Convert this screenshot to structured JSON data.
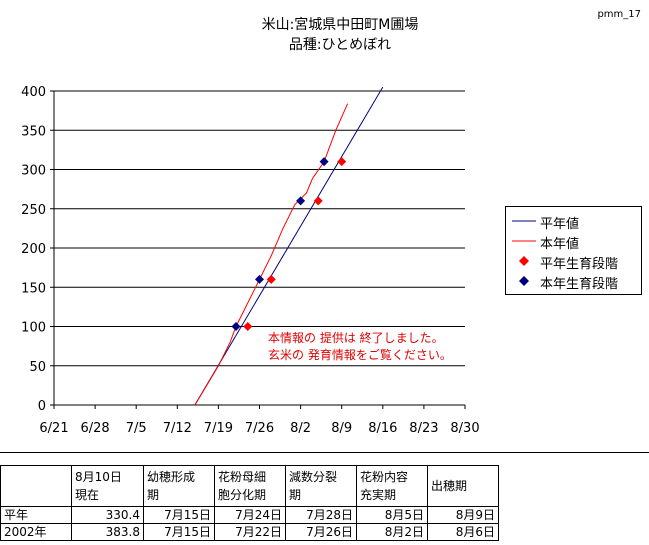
{
  "page_code": "pmm_17",
  "title_line1": "米山:宮城県中田町M圃場",
  "title_line2": "品種:ひとめぼれ",
  "notice": [
    "本情報の 提供は 終了しました。",
    "玄米の 発育情報をご覧ください。"
  ],
  "colors": {
    "average": "#000080",
    "current": "#ff0000",
    "grid": "#000000"
  },
  "chart_data": {
    "type": "line",
    "title": "米山:宮城県中田町M圃場 品種:ひとめぼれ",
    "xlabel": "",
    "ylabel": "",
    "x_ticks": [
      "6/21",
      "6/28",
      "7/5",
      "7/12",
      "7/19",
      "7/26",
      "8/2",
      "8/9",
      "8/16",
      "8/23",
      "8/30"
    ],
    "y_ticks": [
      0,
      50,
      100,
      150,
      200,
      250,
      300,
      350,
      400
    ],
    "ylim": [
      0,
      400
    ],
    "grid": "horizontal",
    "legend_position": "right",
    "series": [
      {
        "name": "平年値",
        "type": "line",
        "color": "#000080",
        "points": [
          [
            "7/15",
            0
          ],
          [
            "8/16",
            405
          ]
        ]
      },
      {
        "name": "本年値",
        "type": "line",
        "color": "#ff0000",
        "points": [
          [
            "7/15",
            0
          ],
          [
            "7/17",
            25
          ],
          [
            "7/19",
            50
          ],
          [
            "7/21",
            80
          ],
          [
            "7/22",
            100
          ],
          [
            "7/24",
            130
          ],
          [
            "7/26",
            160
          ],
          [
            "7/28",
            190
          ],
          [
            "7/30",
            225
          ],
          [
            "8/1",
            255
          ],
          [
            "8/3",
            270
          ],
          [
            "8/4",
            288
          ],
          [
            "8/6",
            310
          ],
          [
            "8/8",
            350
          ],
          [
            "8/10",
            383.8
          ]
        ]
      },
      {
        "name": "平年生育段階",
        "type": "scatter",
        "marker": "diamond",
        "color": "#ff0000",
        "points": [
          [
            "7/24",
            100
          ],
          [
            "7/28",
            160
          ],
          [
            "8/5",
            260
          ],
          [
            "8/9",
            310
          ]
        ]
      },
      {
        "name": "本年生育段階",
        "type": "scatter",
        "marker": "diamond",
        "color": "#000080",
        "points": [
          [
            "7/22",
            100
          ],
          [
            "7/26",
            160
          ],
          [
            "8/2",
            260
          ],
          [
            "8/6",
            310
          ]
        ]
      }
    ]
  },
  "table": {
    "headers": [
      [
        "",
        ""
      ],
      [
        "8月10日",
        "現在"
      ],
      [
        "幼穂形成",
        "期"
      ],
      [
        "花粉母細",
        "胞分化期"
      ],
      [
        "減数分裂",
        "期"
      ],
      [
        "花粉内容",
        "充実期"
      ],
      [
        "出穂期",
        ""
      ]
    ],
    "rows": [
      {
        "label": "平年",
        "cells": [
          "330.4",
          "7月15日",
          "7月24日",
          "7月28日",
          "8月5日",
          "8月9日"
        ]
      },
      {
        "label": "2002年",
        "cells": [
          "383.8",
          "7月15日",
          "7月22日",
          "7月26日",
          "8月2日",
          "8月6日"
        ]
      }
    ]
  }
}
